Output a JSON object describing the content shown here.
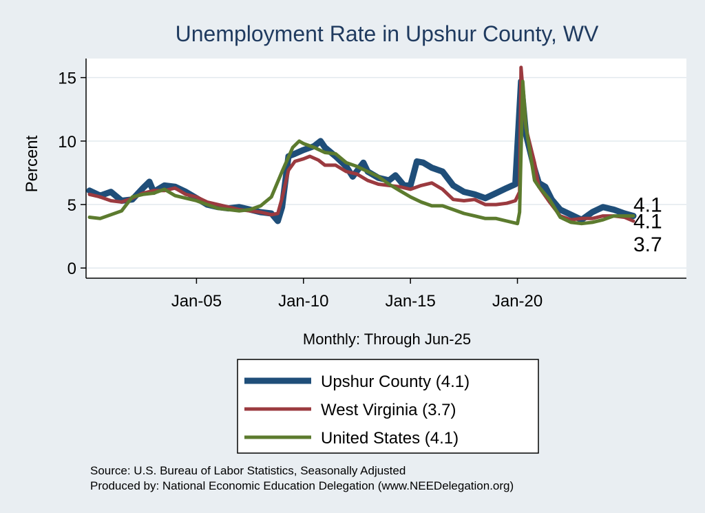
{
  "chart_data": {
    "type": "line",
    "title": "Unemployment Rate in Upshur  County, WV",
    "ylabel": "Percent",
    "xlabel": "Monthly: Through Jun-25",
    "x_range": [
      2000.0,
      2025.42
    ],
    "ylim": [
      -0.8,
      16.5
    ],
    "yticks": [
      0,
      5,
      10,
      15
    ],
    "xticks": [
      {
        "label": "Jan-05",
        "value": 2005
      },
      {
        "label": "Jan-10",
        "value": 2010
      },
      {
        "label": "Jan-15",
        "value": 2015
      },
      {
        "label": "Jan-20",
        "value": 2020
      }
    ],
    "grid": true,
    "legend_position": "bottom",
    "series": [
      {
        "name": "Upshur  County (4.1)",
        "color": "#1f4e79",
        "end_label": "4.1",
        "points": [
          [
            2000.0,
            6.1
          ],
          [
            2000.5,
            5.7
          ],
          [
            2001.0,
            6.0
          ],
          [
            2001.5,
            5.3
          ],
          [
            2002.0,
            5.4
          ],
          [
            2002.5,
            6.3
          ],
          [
            2002.8,
            6.8
          ],
          [
            2003.0,
            6.0
          ],
          [
            2003.5,
            6.5
          ],
          [
            2004.0,
            6.4
          ],
          [
            2004.5,
            6.0
          ],
          [
            2005.0,
            5.5
          ],
          [
            2005.5,
            5.0
          ],
          [
            2006.0,
            4.8
          ],
          [
            2006.5,
            4.7
          ],
          [
            2007.0,
            4.8
          ],
          [
            2007.5,
            4.6
          ],
          [
            2008.0,
            4.4
          ],
          [
            2008.5,
            4.3
          ],
          [
            2008.8,
            3.7
          ],
          [
            2009.0,
            4.8
          ],
          [
            2009.3,
            8.8
          ],
          [
            2009.6,
            9.0
          ],
          [
            2010.0,
            9.3
          ],
          [
            2010.5,
            9.6
          ],
          [
            2010.8,
            10.0
          ],
          [
            2011.0,
            9.5
          ],
          [
            2011.5,
            8.8
          ],
          [
            2012.0,
            8.0
          ],
          [
            2012.3,
            7.2
          ],
          [
            2012.8,
            8.3
          ],
          [
            2013.0,
            7.6
          ],
          [
            2013.5,
            7.1
          ],
          [
            2014.0,
            6.9
          ],
          [
            2014.3,
            7.3
          ],
          [
            2014.7,
            6.5
          ],
          [
            2015.0,
            6.5
          ],
          [
            2015.3,
            8.4
          ],
          [
            2015.6,
            8.3
          ],
          [
            2016.0,
            7.9
          ],
          [
            2016.5,
            7.6
          ],
          [
            2017.0,
            6.5
          ],
          [
            2017.5,
            6.0
          ],
          [
            2018.0,
            5.8
          ],
          [
            2018.5,
            5.5
          ],
          [
            2019.0,
            5.9
          ],
          [
            2019.5,
            6.3
          ],
          [
            2019.9,
            6.6
          ],
          [
            2020.17,
            14.7
          ],
          [
            2020.4,
            10.5
          ],
          [
            2020.8,
            7.8
          ],
          [
            2021.0,
            6.7
          ],
          [
            2021.3,
            6.4
          ],
          [
            2021.6,
            5.4
          ],
          [
            2022.0,
            4.6
          ],
          [
            2022.5,
            4.2
          ],
          [
            2023.0,
            3.8
          ],
          [
            2023.5,
            4.4
          ],
          [
            2024.0,
            4.8
          ],
          [
            2024.5,
            4.6
          ],
          [
            2025.0,
            4.3
          ],
          [
            2025.42,
            4.1
          ]
        ]
      },
      {
        "name": "West Virginia (3.7)",
        "color": "#9b3a3f",
        "end_label": "3.7",
        "points": [
          [
            2000.0,
            5.8
          ],
          [
            2000.5,
            5.6
          ],
          [
            2001.0,
            5.3
          ],
          [
            2001.5,
            5.2
          ],
          [
            2002.0,
            5.5
          ],
          [
            2002.5,
            5.9
          ],
          [
            2003.0,
            6.1
          ],
          [
            2003.5,
            6.1
          ],
          [
            2004.0,
            6.3
          ],
          [
            2004.5,
            5.8
          ],
          [
            2005.0,
            5.6
          ],
          [
            2005.5,
            5.2
          ],
          [
            2006.0,
            5.0
          ],
          [
            2006.5,
            4.8
          ],
          [
            2007.0,
            4.6
          ],
          [
            2007.5,
            4.5
          ],
          [
            2008.0,
            4.4
          ],
          [
            2008.5,
            4.2
          ],
          [
            2008.8,
            4.3
          ],
          [
            2009.0,
            5.5
          ],
          [
            2009.3,
            7.7
          ],
          [
            2009.6,
            8.4
          ],
          [
            2010.0,
            8.6
          ],
          [
            2010.3,
            8.8
          ],
          [
            2010.7,
            8.5
          ],
          [
            2011.0,
            8.1
          ],
          [
            2011.5,
            8.1
          ],
          [
            2012.0,
            7.6
          ],
          [
            2012.5,
            7.4
          ],
          [
            2013.0,
            6.9
          ],
          [
            2013.5,
            6.6
          ],
          [
            2014.0,
            6.5
          ],
          [
            2014.5,
            6.4
          ],
          [
            2015.0,
            6.2
          ],
          [
            2015.5,
            6.5
          ],
          [
            2016.0,
            6.7
          ],
          [
            2016.5,
            6.2
          ],
          [
            2017.0,
            5.4
          ],
          [
            2017.5,
            5.3
          ],
          [
            2018.0,
            5.4
          ],
          [
            2018.5,
            5.0
          ],
          [
            2019.0,
            5.0
          ],
          [
            2019.5,
            5.1
          ],
          [
            2019.9,
            5.3
          ],
          [
            2020.1,
            6.0
          ],
          [
            2020.17,
            15.8
          ],
          [
            2020.4,
            11.0
          ],
          [
            2020.8,
            8.3
          ],
          [
            2021.0,
            6.4
          ],
          [
            2021.5,
            5.2
          ],
          [
            2022.0,
            4.1
          ],
          [
            2022.5,
            3.8
          ],
          [
            2023.0,
            3.9
          ],
          [
            2023.5,
            3.9
          ],
          [
            2024.0,
            4.1
          ],
          [
            2024.5,
            4.1
          ],
          [
            2025.0,
            4.0
          ],
          [
            2025.42,
            3.7
          ]
        ]
      },
      {
        "name": "United States (4.1)",
        "color": "#5c7b2e",
        "end_label": "4.1",
        "points": [
          [
            2000.0,
            4.0
          ],
          [
            2000.5,
            3.9
          ],
          [
            2001.0,
            4.2
          ],
          [
            2001.5,
            4.5
          ],
          [
            2002.0,
            5.6
          ],
          [
            2002.5,
            5.8
          ],
          [
            2003.0,
            5.9
          ],
          [
            2003.5,
            6.2
          ],
          [
            2004.0,
            5.7
          ],
          [
            2004.5,
            5.5
          ],
          [
            2005.0,
            5.3
          ],
          [
            2005.5,
            5.0
          ],
          [
            2006.0,
            4.7
          ],
          [
            2006.5,
            4.6
          ],
          [
            2007.0,
            4.5
          ],
          [
            2007.5,
            4.6
          ],
          [
            2008.0,
            4.9
          ],
          [
            2008.5,
            5.6
          ],
          [
            2009.0,
            7.6
          ],
          [
            2009.5,
            9.5
          ],
          [
            2009.8,
            10.0
          ],
          [
            2010.0,
            9.8
          ],
          [
            2010.5,
            9.5
          ],
          [
            2011.0,
            9.1
          ],
          [
            2011.5,
            9.0
          ],
          [
            2012.0,
            8.3
          ],
          [
            2012.5,
            8.0
          ],
          [
            2013.0,
            7.6
          ],
          [
            2013.5,
            7.2
          ],
          [
            2014.0,
            6.6
          ],
          [
            2014.5,
            6.1
          ],
          [
            2015.0,
            5.6
          ],
          [
            2015.5,
            5.2
          ],
          [
            2016.0,
            4.9
          ],
          [
            2016.5,
            4.9
          ],
          [
            2017.0,
            4.6
          ],
          [
            2017.5,
            4.3
          ],
          [
            2018.0,
            4.1
          ],
          [
            2018.5,
            3.9
          ],
          [
            2019.0,
            3.9
          ],
          [
            2019.5,
            3.7
          ],
          [
            2020.0,
            3.5
          ],
          [
            2020.1,
            4.4
          ],
          [
            2020.25,
            14.7
          ],
          [
            2020.4,
            11.1
          ],
          [
            2020.8,
            6.9
          ],
          [
            2021.0,
            6.4
          ],
          [
            2021.5,
            5.4
          ],
          [
            2022.0,
            4.0
          ],
          [
            2022.5,
            3.6
          ],
          [
            2023.0,
            3.5
          ],
          [
            2023.5,
            3.6
          ],
          [
            2024.0,
            3.8
          ],
          [
            2024.5,
            4.1
          ],
          [
            2025.0,
            4.1
          ],
          [
            2025.42,
            4.1
          ]
        ]
      }
    ],
    "end_labels": [
      {
        "text": "4.1",
        "value": 4.1
      },
      {
        "text": "4.1",
        "value": 4.1
      },
      {
        "text": "3.7",
        "value": 3.7
      }
    ]
  },
  "legend_order": [
    0,
    1,
    2
  ],
  "footer": {
    "source": "Source: U.S. Bureau of Labor Statistics, Seasonally Adjusted",
    "produced": "Produced by: National Economic Education Delegation (www.NEEDelegation.org)"
  }
}
